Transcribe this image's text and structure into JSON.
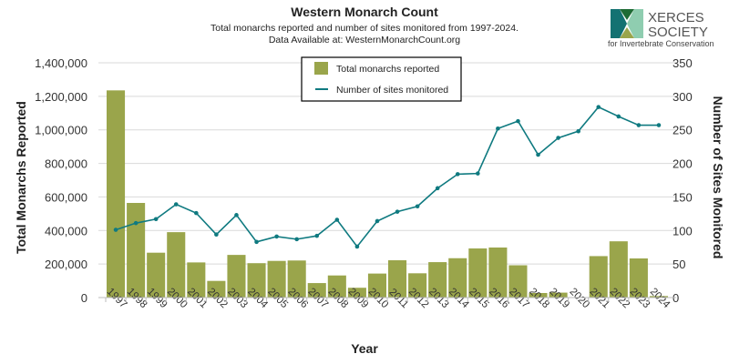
{
  "logo": {
    "text": "XERCES SOCIETY",
    "tagline": "for Invertebrate Conservation"
  },
  "chart_data": {
    "type": "bar+line",
    "title": "Western Monarch Count",
    "subtitle": [
      "Total monarchs reported and number of sites monitored from 1997-2024.",
      "Data Available at: WesternMonarchCount.org"
    ],
    "xlabel": "Year",
    "ylabel": "Total Monarchs Reported",
    "y2label": "Number of Sites Monitored",
    "ylim": [
      0,
      1400000
    ],
    "y2lim": [
      0,
      350
    ],
    "yticks": [
      "0",
      "200,000",
      "400,000",
      "600,000",
      "800,000",
      "1,000,000",
      "1,200,000",
      "1,400,000"
    ],
    "y2ticks": [
      "0",
      "50",
      "100",
      "150",
      "200",
      "250",
      "300",
      "350"
    ],
    "grid": true,
    "legend_position": "top-center",
    "categories": [
      "1997",
      "1998",
      "1999",
      "2000",
      "2001",
      "2002",
      "2003",
      "2004",
      "2005",
      "2006",
      "2007",
      "2008",
      "2009",
      "2010",
      "2011",
      "2012",
      "2013",
      "2014",
      "2015",
      "2016",
      "2017",
      "2018",
      "2019",
      "2020",
      "2021",
      "2022",
      "2023",
      "2024"
    ],
    "series": [
      {
        "name": "Total monarchs reported",
        "type": "bar",
        "axis": "left",
        "color": "#9aa54b",
        "values": [
          1235490,
          564349,
          267574,
          390057,
          209570,
          99353,
          254378,
          205085,
          218679,
          221058,
          86437,
          131889,
          58468,
          143204,
          222525,
          144812,
          211275,
          234731,
          292888,
          298464,
          192624,
          27218,
          29418,
          1899,
          247237,
          335479,
          233394,
          9119
        ]
      },
      {
        "name": "Number of sites monitored",
        "type": "line",
        "axis": "right",
        "color": "#0f7a80",
        "values": [
          101,
          111,
          117,
          139,
          126,
          94,
          123,
          83,
          91,
          87,
          92,
          116,
          76,
          114,
          128,
          136,
          163,
          184,
          185,
          252,
          263,
          213,
          238,
          248,
          284,
          270,
          257,
          257
        ]
      }
    ]
  }
}
